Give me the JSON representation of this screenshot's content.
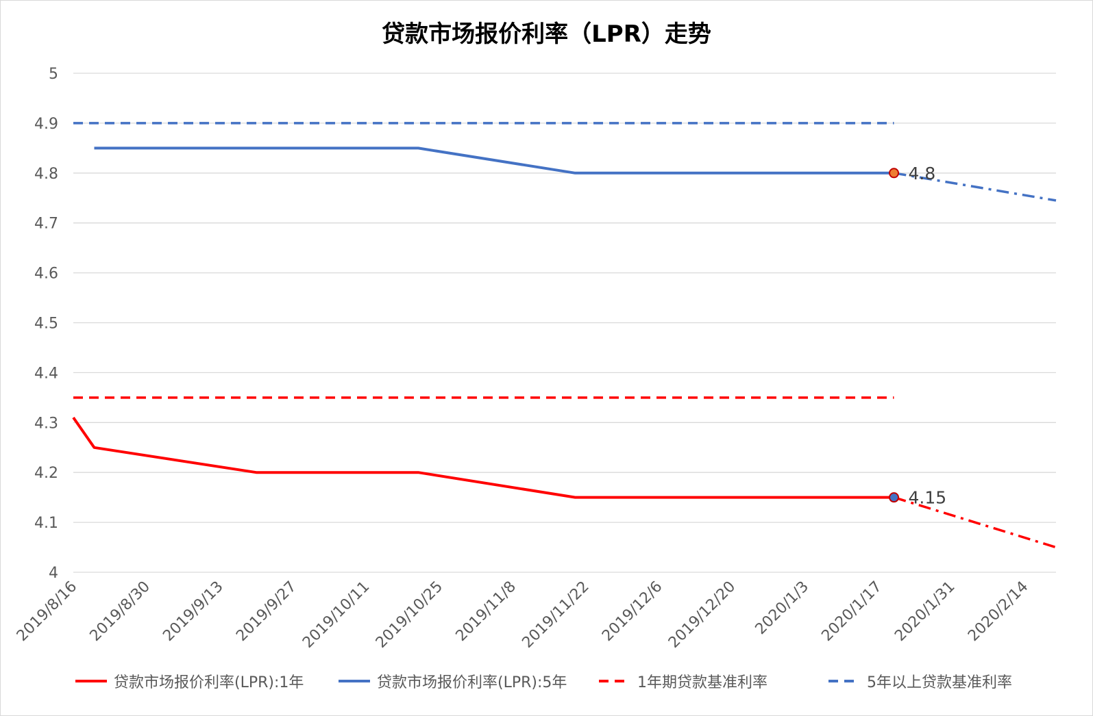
{
  "chart_data": {
    "type": "line",
    "title": "贷款市场报价利率（LPR）走势",
    "xlabel": "",
    "ylabel": "",
    "ylim": [
      4,
      5
    ],
    "yticks": [
      "4",
      "4.1",
      "4.2",
      "4.3",
      "4.4",
      "4.5",
      "4.6",
      "4.7",
      "4.8",
      "4.9",
      "5"
    ],
    "xticks": [
      "2019/8/16",
      "2019/8/30",
      "2019/9/13",
      "2019/9/27",
      "2019/10/11",
      "2019/10/25",
      "2019/11/8",
      "2019/11/22",
      "2019/12/6",
      "2019/12/20",
      "2020/1/3",
      "2020/1/17",
      "2020/1/31",
      "2020/2/14"
    ],
    "xlim": [
      "2019/8/16",
      "2020/2/20"
    ],
    "grid": true,
    "legend_position": "bottom",
    "series": [
      {
        "name": "贷款市场报价利率(LPR):1年",
        "color": "#ff0000",
        "style": "solid",
        "points": [
          [
            "2019/8/16",
            4.31
          ],
          [
            "2019/8/20",
            4.25
          ],
          [
            "2019/9/20",
            4.2
          ],
          [
            "2019/10/21",
            4.2
          ],
          [
            "2019/11/20",
            4.15
          ],
          [
            "2020/1/20",
            4.15
          ]
        ]
      },
      {
        "name": "贷款市场报价利率(LPR):5年",
        "color": "#4472c4",
        "style": "solid",
        "points": [
          [
            "2019/8/20",
            4.85
          ],
          [
            "2019/10/21",
            4.85
          ],
          [
            "2019/11/20",
            4.8
          ],
          [
            "2020/1/20",
            4.8
          ]
        ]
      },
      {
        "name": "1年期贷款基准利率",
        "color": "#ff0000",
        "style": "dashed",
        "points": [
          [
            "2019/8/16",
            4.35
          ],
          [
            "2020/1/20",
            4.35
          ]
        ]
      },
      {
        "name": "5年以上贷款基准利率",
        "color": "#4472c4",
        "style": "dashed",
        "points": [
          [
            "2019/8/16",
            4.9
          ],
          [
            "2020/1/20",
            4.9
          ]
        ]
      },
      {
        "name": "",
        "color": "#ff0000",
        "style": "dashdot",
        "points": [
          [
            "2020/1/20",
            4.15
          ],
          [
            "2020/2/20",
            4.05
          ]
        ]
      },
      {
        "name": "",
        "color": "#4472c4",
        "style": "dashdot",
        "points": [
          [
            "2020/1/20",
            4.8
          ],
          [
            "2020/2/20",
            4.745
          ]
        ]
      }
    ],
    "annotations": [
      {
        "text": "4.8",
        "x": "2020/1/20",
        "y": 4.8,
        "marker_color": "#ed7d31",
        "marker_stroke": "#c00000"
      },
      {
        "text": "4.15",
        "x": "2020/1/20",
        "y": 4.15,
        "marker_color": "#4472c4",
        "marker_stroke": "#c00000"
      }
    ],
    "legend": [
      {
        "label": "贷款市场报价利率(LPR):1年",
        "color": "#ff0000",
        "style": "solid"
      },
      {
        "label": "贷款市场报价利率(LPR):5年",
        "color": "#4472c4",
        "style": "solid"
      },
      {
        "label": "1年期贷款基准利率",
        "color": "#ff0000",
        "style": "dashed"
      },
      {
        "label": "5年以上贷款基准利率",
        "color": "#4472c4",
        "style": "dashed"
      }
    ]
  }
}
